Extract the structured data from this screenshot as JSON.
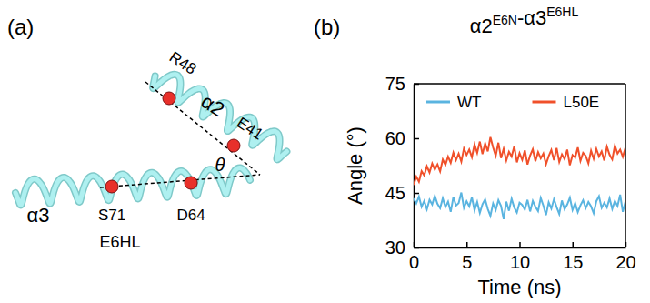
{
  "panel_labels": [
    "(a)",
    "(b)"
  ],
  "diagram": {
    "helices": [
      {
        "label": "α2"
      },
      {
        "label": "α3"
      }
    ],
    "residues": [
      {
        "label": "R48"
      },
      {
        "label": "E41"
      },
      {
        "label": "D64"
      },
      {
        "label": "S71"
      }
    ],
    "angle_label": "θ",
    "domain_label": "E6HL"
  },
  "chart_data": {
    "type": "line",
    "title": "α2E6N-α3E6HL",
    "x_label": "Time (ns)",
    "y_label": "Angle (°)",
    "xlim": [
      0,
      20
    ],
    "xticks": [
      0,
      5,
      10,
      15,
      20
    ],
    "ylim": [
      30,
      75
    ],
    "yticks": [
      30,
      45,
      60,
      75
    ],
    "grid": false,
    "legend": "top",
    "x": [
      0,
      0.25,
      0.5,
      0.75,
      1,
      1.25,
      1.5,
      1.75,
      2,
      2.25,
      2.5,
      2.75,
      3,
      3.25,
      3.5,
      3.75,
      4,
      4.25,
      4.5,
      4.75,
      5,
      5.25,
      5.5,
      5.75,
      6,
      6.25,
      6.5,
      6.75,
      7,
      7.25,
      7.5,
      7.75,
      8,
      8.25,
      8.5,
      8.75,
      9,
      9.25,
      9.5,
      9.75,
      10,
      10.25,
      10.5,
      10.75,
      11,
      11.25,
      11.5,
      11.75,
      12,
      12.25,
      12.5,
      12.75,
      13,
      13.25,
      13.5,
      13.75,
      14,
      14.25,
      14.5,
      14.75,
      15,
      15.25,
      15.5,
      15.75,
      16,
      16.25,
      16.5,
      16.75,
      17,
      17.25,
      17.5,
      17.75,
      18,
      18.25,
      18.5,
      18.75,
      19,
      19.25,
      19.5,
      19.75,
      20
    ],
    "series": [
      {
        "name": "WT",
        "color": "#5ab4e0",
        "values": [
          43.5,
          42.1,
          44.0,
          41.2,
          42.8,
          40.5,
          43.1,
          41.8,
          44.2,
          42.0,
          40.8,
          43.5,
          41.1,
          42.6,
          39.8,
          43.9,
          41.5,
          42.2,
          45.1,
          40.9,
          42.7,
          41.3,
          43.8,
          40.2,
          42.5,
          39.5,
          41.9,
          43.2,
          40.6,
          38.7,
          42.1,
          40.3,
          43.0,
          41.4,
          37.8,
          42.6,
          40.1,
          43.4,
          41.0,
          39.6,
          42.3,
          41.7,
          40.4,
          43.1,
          39.9,
          42.8,
          41.2,
          40.0,
          43.6,
          41.5,
          38.9,
          42.4,
          40.7,
          43.3,
          41.1,
          39.2,
          42.9,
          40.5,
          41.8,
          43.7,
          40.3,
          42.2,
          39.7,
          41.6,
          43.0,
          40.8,
          42.5,
          41.3,
          39.4,
          42.7,
          44.1,
          40.9,
          42.3,
          41.0,
          43.5,
          40.6,
          42.8,
          41.4,
          44.5,
          39.8,
          42.6
        ]
      },
      {
        "name": "L50E",
        "color": "#f0502a",
        "values": [
          47.2,
          49.5,
          48.1,
          51.0,
          49.8,
          52.3,
          50.6,
          53.1,
          51.4,
          52.8,
          50.9,
          54.2,
          52.7,
          55.0,
          53.3,
          56.1,
          54.0,
          55.8,
          53.6,
          57.2,
          55.4,
          56.9,
          54.8,
          58.3,
          56.0,
          59.1,
          55.7,
          58.6,
          56.4,
          60.3,
          57.5,
          55.2,
          58.8,
          54.6,
          57.1,
          53.9,
          56.3,
          55.0,
          57.8,
          53.4,
          55.9,
          54.1,
          56.7,
          52.8,
          55.3,
          57.0,
          53.7,
          56.2,
          54.5,
          55.8,
          52.9,
          55.1,
          56.8,
          54.0,
          57.3,
          53.5,
          55.6,
          54.3,
          56.9,
          52.6,
          55.4,
          54.7,
          57.5,
          53.8,
          56.0,
          55.2,
          53.1,
          56.6,
          54.4,
          57.1,
          55.0,
          56.4,
          53.9,
          57.7,
          55.5,
          54.2,
          58.0,
          55.8,
          56.9,
          54.9,
          57.4
        ]
      }
    ]
  }
}
